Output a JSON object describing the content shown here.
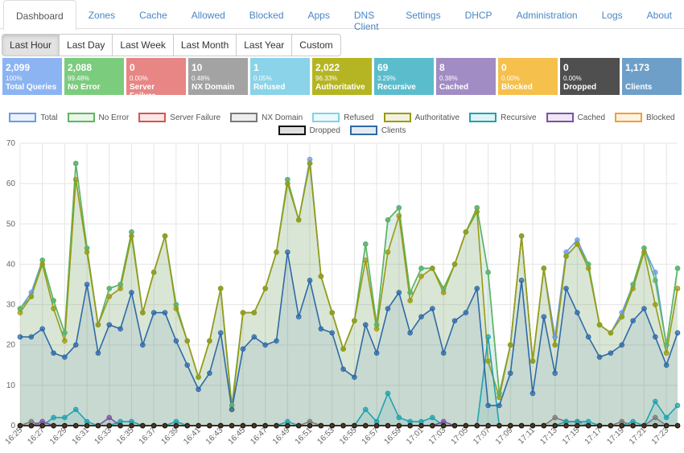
{
  "tabs": [
    "Dashboard",
    "Zones",
    "Cache",
    "Allowed",
    "Blocked",
    "Apps",
    "DNS Client",
    "Settings",
    "DHCP",
    "Administration",
    "Logs",
    "About"
  ],
  "active_tab": 0,
  "ranges": [
    "Last Hour",
    "Last Day",
    "Last Week",
    "Last Month",
    "Last Year",
    "Custom"
  ],
  "active_range": 0,
  "stats": [
    {
      "value": "2,099",
      "percent": "100%",
      "label": "Total Queries",
      "color": "#8cb4f2"
    },
    {
      "value": "2,088",
      "percent": "99.48%",
      "label": "No Error",
      "color": "#7ccc7e"
    },
    {
      "value": "0",
      "percent": "0.00%",
      "label": "Server Failure",
      "color": "#e88585"
    },
    {
      "value": "10",
      "percent": "0.48%",
      "label": "NX Domain",
      "color": "#a3a3a3"
    },
    {
      "value": "1",
      "percent": "0.05%",
      "label": "Refused",
      "color": "#8ad3e8"
    },
    {
      "value": "2,022",
      "percent": "96.33%",
      "label": "Authoritative",
      "color": "#b5b523"
    },
    {
      "value": "69",
      "percent": "3.29%",
      "label": "Recursive",
      "color": "#5bbdcc"
    },
    {
      "value": "8",
      "percent": "0.38%",
      "label": "Cached",
      "color": "#a18cc4"
    },
    {
      "value": "0",
      "percent": "0.00%",
      "label": "Blocked",
      "color": "#f5c04c"
    },
    {
      "value": "0",
      "percent": "0.00%",
      "label": "Dropped",
      "color": "#4f4f4f"
    },
    {
      "value": "1,173",
      "percent": "",
      "label": "Clients",
      "color": "#6e9fc9"
    }
  ],
  "chart_data": {
    "type": "line",
    "categories": [
      "16:25",
      null,
      "16:27",
      null,
      "16:29",
      null,
      "16:31",
      null,
      "16:33",
      null,
      "16:35",
      null,
      "16:37",
      null,
      "16:39",
      null,
      "16:41",
      null,
      "16:43",
      null,
      "16:45",
      null,
      "16:47",
      null,
      "16:49",
      null,
      "16:51",
      null,
      "16:53",
      null,
      "16:55",
      null,
      "16:57",
      null,
      "16:59",
      null,
      "17:01",
      null,
      "17:03",
      null,
      "17:05",
      null,
      "17:07",
      null,
      "17:09",
      null,
      "17:11",
      null,
      "17:13",
      null,
      "17:15",
      null,
      "17:17",
      null,
      "17:19",
      null,
      "17:21",
      null,
      "17:23",
      null
    ],
    "ylim": [
      0,
      70
    ],
    "yticks": [
      0,
      10,
      20,
      30,
      40,
      50,
      60,
      70
    ],
    "grid": true,
    "series": [
      {
        "name": "Total",
        "color": "#6a9be3",
        "values": [
          29,
          33,
          41,
          31,
          23,
          65,
          44,
          25,
          34,
          35,
          48,
          28,
          38,
          47,
          30,
          21,
          12,
          21,
          34,
          5,
          28,
          28,
          34,
          43,
          61,
          51,
          66,
          37,
          28,
          19,
          26,
          45,
          25,
          51,
          54,
          33,
          39,
          39,
          34,
          40,
          48,
          54,
          38,
          8,
          20,
          47,
          16,
          39,
          22,
          43,
          46,
          40,
          25,
          23,
          28,
          35,
          44,
          38,
          20,
          39
        ]
      },
      {
        "name": "No Error",
        "color": "#5cb85c",
        "values": [
          29,
          32,
          41,
          31,
          23,
          65,
          44,
          25,
          34,
          35,
          48,
          28,
          38,
          47,
          30,
          21,
          12,
          21,
          34,
          5,
          28,
          28,
          34,
          43,
          61,
          51,
          65,
          37,
          28,
          19,
          26,
          45,
          25,
          51,
          54,
          33,
          39,
          39,
          34,
          40,
          48,
          54,
          38,
          8,
          20,
          47,
          16,
          39,
          20,
          42,
          45,
          40,
          25,
          23,
          27,
          35,
          44,
          36,
          20,
          39
        ]
      },
      {
        "name": "Server Failure",
        "color": "#d9534f",
        "values": [
          0,
          0,
          0,
          0,
          0,
          0,
          0,
          0,
          0,
          0,
          0,
          0,
          0,
          0,
          0,
          0,
          0,
          0,
          0,
          0,
          0,
          0,
          0,
          0,
          0,
          0,
          0,
          0,
          0,
          0,
          0,
          0,
          0,
          0,
          0,
          0,
          0,
          0,
          0,
          0,
          0,
          0,
          0,
          0,
          0,
          0,
          0,
          0,
          0,
          0,
          0,
          0,
          0,
          0,
          0,
          0,
          0,
          0,
          0,
          0
        ]
      },
      {
        "name": "NX Domain",
        "color": "#7a7a7a",
        "values": [
          0,
          1,
          0,
          0,
          0,
          0,
          0,
          0,
          0,
          0,
          0,
          0,
          0,
          0,
          0,
          0,
          0,
          0,
          0,
          0,
          0,
          0,
          0,
          0,
          0,
          0,
          1,
          0,
          0,
          0,
          0,
          0,
          0,
          0,
          0,
          0,
          0,
          0,
          0,
          0,
          0,
          0,
          0,
          0,
          0,
          0,
          0,
          0,
          2,
          1,
          1,
          0,
          0,
          0,
          1,
          0,
          0,
          2,
          0,
          0
        ]
      },
      {
        "name": "Refused",
        "color": "#7fd3e6",
        "values": [
          0,
          0,
          0,
          0,
          0,
          0,
          0,
          0,
          0,
          0,
          0,
          0,
          0,
          0,
          0,
          0,
          0,
          0,
          0,
          0,
          0,
          0,
          0,
          0,
          0,
          0,
          0,
          0,
          0,
          0,
          0,
          0,
          0,
          0,
          0,
          0,
          0,
          0,
          0,
          0,
          0,
          0,
          0,
          0,
          0,
          0,
          0,
          0,
          0,
          0,
          0,
          1,
          0,
          0,
          0,
          0,
          0,
          0,
          0,
          0
        ]
      },
      {
        "name": "Authoritative",
        "color": "#9a9a12",
        "values": [
          28,
          32,
          40,
          29,
          21,
          61,
          43,
          25,
          32,
          34,
          47,
          28,
          38,
          47,
          29,
          21,
          12,
          21,
          34,
          4,
          28,
          28,
          34,
          43,
          60,
          51,
          65,
          37,
          28,
          19,
          26,
          41,
          24,
          43,
          52,
          31,
          37,
          39,
          33,
          40,
          48,
          53,
          16,
          7,
          20,
          47,
          16,
          39,
          20,
          42,
          45,
          39,
          25,
          23,
          27,
          34,
          43,
          30,
          18,
          34
        ]
      },
      {
        "name": "Recursive",
        "color": "#1fa3b0",
        "values": [
          0,
          0,
          0,
          2,
          2,
          4,
          1,
          0,
          0,
          1,
          1,
          0,
          0,
          0,
          1,
          0,
          0,
          0,
          0,
          0,
          0,
          0,
          0,
          0,
          1,
          0,
          0,
          0,
          0,
          0,
          0,
          4,
          1,
          8,
          2,
          1,
          1,
          2,
          0,
          0,
          0,
          0,
          22,
          0,
          0,
          0,
          0,
          0,
          0,
          1,
          1,
          1,
          0,
          0,
          0,
          1,
          0,
          6,
          2,
          5
        ]
      },
      {
        "name": "Cached",
        "color": "#7b52a8",
        "values": [
          0,
          0,
          1,
          0,
          0,
          0,
          0,
          0,
          2,
          0,
          0,
          0,
          0,
          0,
          0,
          0,
          0,
          0,
          0,
          0,
          0,
          0,
          0,
          0,
          0,
          0,
          0,
          0,
          0,
          0,
          0,
          0,
          0,
          0,
          0,
          0,
          0,
          0,
          1,
          0,
          0,
          0,
          0,
          0,
          0,
          0,
          0,
          0,
          0,
          0,
          0,
          0,
          0,
          0,
          0,
          0,
          0,
          0,
          0,
          0
        ]
      },
      {
        "name": "Blocked",
        "color": "#f0a030",
        "values": [
          0,
          0,
          0,
          0,
          0,
          0,
          0,
          0,
          0,
          0,
          0,
          0,
          0,
          0,
          0,
          0,
          0,
          0,
          0,
          0,
          0,
          0,
          0,
          0,
          0,
          0,
          0,
          0,
          0,
          0,
          0,
          0,
          0,
          0,
          0,
          0,
          0,
          0,
          0,
          0,
          0,
          0,
          0,
          0,
          0,
          0,
          0,
          0,
          0,
          0,
          0,
          0,
          0,
          0,
          0,
          0,
          0,
          0,
          0,
          0
        ]
      },
      {
        "name": "Dropped",
        "color": "#111111",
        "values": [
          0,
          0,
          0,
          0,
          0,
          0,
          0,
          0,
          0,
          0,
          0,
          0,
          0,
          0,
          0,
          0,
          0,
          0,
          0,
          0,
          0,
          0,
          0,
          0,
          0,
          0,
          0,
          0,
          0,
          0,
          0,
          0,
          0,
          0,
          0,
          0,
          0,
          0,
          0,
          0,
          0,
          0,
          0,
          0,
          0,
          0,
          0,
          0,
          0,
          0,
          0,
          0,
          0,
          0,
          0,
          0,
          0,
          0,
          0,
          0
        ]
      },
      {
        "name": "Clients",
        "color": "#2f6aa8",
        "values": [
          22,
          22,
          24,
          18,
          17,
          20,
          35,
          18,
          25,
          24,
          33,
          20,
          28,
          28,
          21,
          15,
          9,
          13,
          23,
          4,
          19,
          22,
          20,
          21,
          43,
          27,
          36,
          24,
          23,
          14,
          12,
          25,
          18,
          29,
          33,
          23,
          27,
          29,
          18,
          26,
          28,
          34,
          5,
          5,
          13,
          36,
          8,
          27,
          13,
          34,
          28,
          22,
          17,
          18,
          20,
          26,
          29,
          22,
          15,
          23
        ]
      }
    ]
  }
}
